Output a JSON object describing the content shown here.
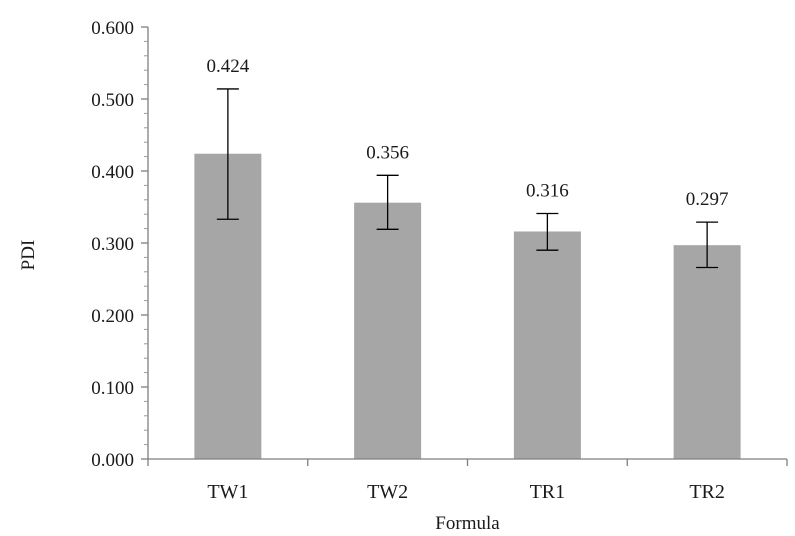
{
  "chart_data": {
    "type": "bar",
    "categories": [
      "TW1",
      "TW2",
      "TR1",
      "TR2"
    ],
    "values": [
      0.424,
      0.356,
      0.316,
      0.297
    ],
    "value_labels": [
      "0.424",
      "0.356",
      "0.316",
      "0.297"
    ],
    "error_bars": {
      "lower": [
        0.333,
        0.319,
        0.29,
        0.266
      ],
      "upper": [
        0.514,
        0.394,
        0.341,
        0.329
      ]
    },
    "xlabel": "Formula",
    "ylabel": "PDI",
    "ylim": [
      0,
      0.6
    ],
    "yticks": [
      0,
      0.1,
      0.2,
      0.3,
      0.4,
      0.5,
      0.6
    ],
    "ytick_labels": [
      "0.000",
      "0.100",
      "0.200",
      "0.300",
      "0.400",
      "0.500",
      "0.600"
    ],
    "bar_color": "#a6a6a6",
    "axis_color": "#7f7f7f",
    "grid": false,
    "legend": "none"
  }
}
